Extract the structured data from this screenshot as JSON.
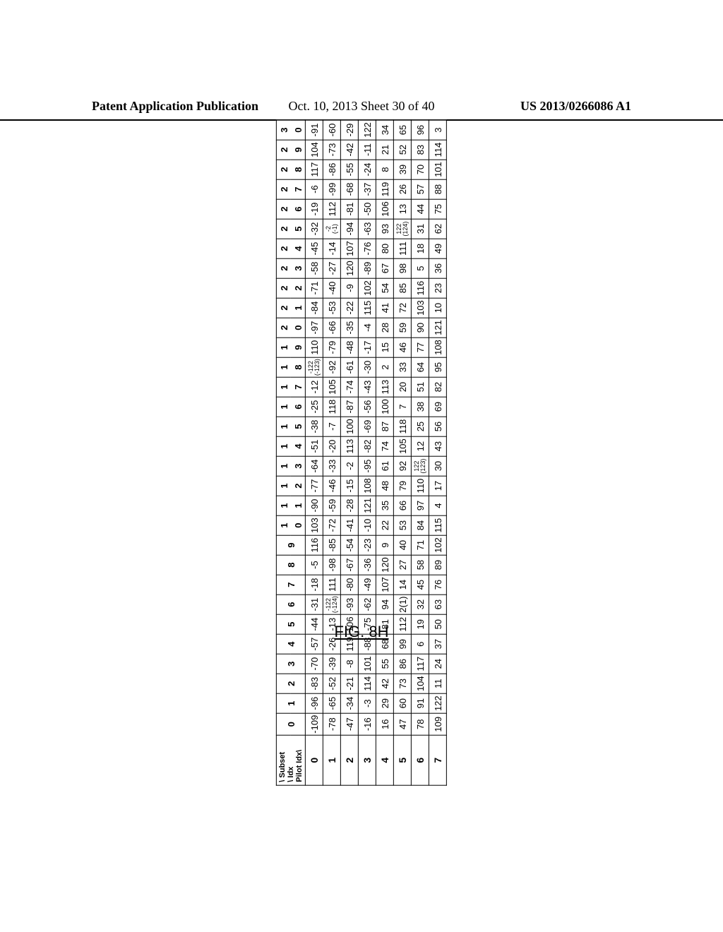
{
  "header": {
    "left": "Patent Application Publication",
    "center": "Oct. 10, 2013  Sheet 30 of 40",
    "right": "US 2013/0266086 A1"
  },
  "figure_label": {
    "prefix": "FIG. 8H"
  },
  "table": {
    "corner_lines": [
      "\\ Subset",
      " \\ Idx",
      "Pilot Idx\\"
    ],
    "col_headers_top": [
      "0",
      "1",
      "2",
      "3",
      "4",
      "5",
      "6",
      "7",
      "8",
      "9",
      "1",
      "1",
      "1",
      "1",
      "1",
      "1",
      "1",
      "1",
      "1",
      "1",
      "2",
      "2",
      "2",
      "2",
      "2",
      "2",
      "2",
      "2",
      "2",
      "2",
      "3"
    ],
    "col_headers_bot": [
      "",
      "",
      "",
      "",
      "",
      "",
      "",
      "",
      "",
      "",
      "0",
      "1",
      "2",
      "3",
      "4",
      "5",
      "6",
      "7",
      "8",
      "9",
      "0",
      "1",
      "2",
      "3",
      "4",
      "5",
      "6",
      "7",
      "8",
      "9",
      "0"
    ],
    "rows": [
      {
        "k": "0",
        "v": [
          "-109",
          "-96",
          "-83",
          "-70",
          "-57",
          "-44",
          "-31",
          "-18",
          "-5",
          "116",
          "103",
          "-90",
          "-77",
          "-64",
          "-51",
          "-38",
          "-25",
          "-12",
          "-122 (-123)",
          "110",
          "-97",
          "-84",
          "-71",
          "-58",
          "-45",
          "-32",
          "-19",
          "-6",
          "117",
          "104",
          "-91"
        ]
      },
      {
        "k": "1",
        "v": [
          "-78",
          "-65",
          "-52",
          "-39",
          "-26",
          "-13",
          "-122 (-124)",
          "111",
          "-98",
          "-85",
          "-72",
          "-59",
          "-46",
          "-33",
          "-20",
          "-7",
          "118",
          "105",
          "-92",
          "-79",
          "-66",
          "-53",
          "-40",
          "-27",
          "-14",
          "-2 (-1)",
          "112",
          "-99",
          "-86",
          "-73",
          "-60"
        ]
      },
      {
        "k": "2",
        "v": [
          "-47",
          "-34",
          "-21",
          "-8",
          "119",
          "106",
          "-93",
          "-80",
          "-67",
          "-54",
          "-41",
          "-28",
          "-15",
          "-2",
          "113",
          "100",
          "-87",
          "-74",
          "-61",
          "-48",
          "-35",
          "-22",
          "-9",
          "120",
          "107",
          "-94",
          "-81",
          "-68",
          "-55",
          "-42",
          "-29"
        ]
      },
      {
        "k": "3",
        "v": [
          "-16",
          "-3",
          "114",
          "101",
          "-88",
          "-75",
          "-62",
          "-49",
          "-36",
          "-23",
          "-10",
          "121",
          "108",
          "-95",
          "-82",
          "-69",
          "-56",
          "-43",
          "-30",
          "-17",
          "-4",
          "115",
          "102",
          "-89",
          "-76",
          "-63",
          "-50",
          "-37",
          "-24",
          "-11",
          "122"
        ]
      },
      {
        "k": "4",
        "v": [
          "16",
          "29",
          "42",
          "55",
          "68",
          "81",
          "94",
          "107",
          "120",
          "9",
          "22",
          "35",
          "48",
          "61",
          "74",
          "87",
          "100",
          "113",
          "2",
          "15",
          "28",
          "41",
          "54",
          "67",
          "80",
          "93",
          "106",
          "119",
          "8",
          "21",
          "34"
        ]
      },
      {
        "k": "5",
        "v": [
          "47",
          "60",
          "73",
          "86",
          "99",
          "112",
          "2(1)",
          "14",
          "27",
          "40",
          "53",
          "66",
          "79",
          "92",
          "105",
          "118",
          "7",
          "20",
          "33",
          "46",
          "59",
          "72",
          "85",
          "98",
          "111",
          "122 (124)",
          "13",
          "26",
          "39",
          "52",
          "65"
        ]
      },
      {
        "k": "6",
        "v": [
          "78",
          "91",
          "104",
          "117",
          "6",
          "19",
          "32",
          "45",
          "58",
          "71",
          "84",
          "97",
          "110",
          "122 (123)",
          "12",
          "25",
          "38",
          "51",
          "64",
          "77",
          "90",
          "103",
          "116",
          "5",
          "18",
          "31",
          "44",
          "57",
          "70",
          "83",
          "96"
        ]
      },
      {
        "k": "7",
        "v": [
          "109",
          "122",
          "11",
          "24",
          "37",
          "50",
          "63",
          "76",
          "89",
          "102",
          "115",
          "4",
          "17",
          "30",
          "43",
          "56",
          "69",
          "82",
          "95",
          "108",
          "121",
          "10",
          "23",
          "36",
          "49",
          "62",
          "75",
          "88",
          "101",
          "114",
          "3"
        ]
      }
    ]
  }
}
